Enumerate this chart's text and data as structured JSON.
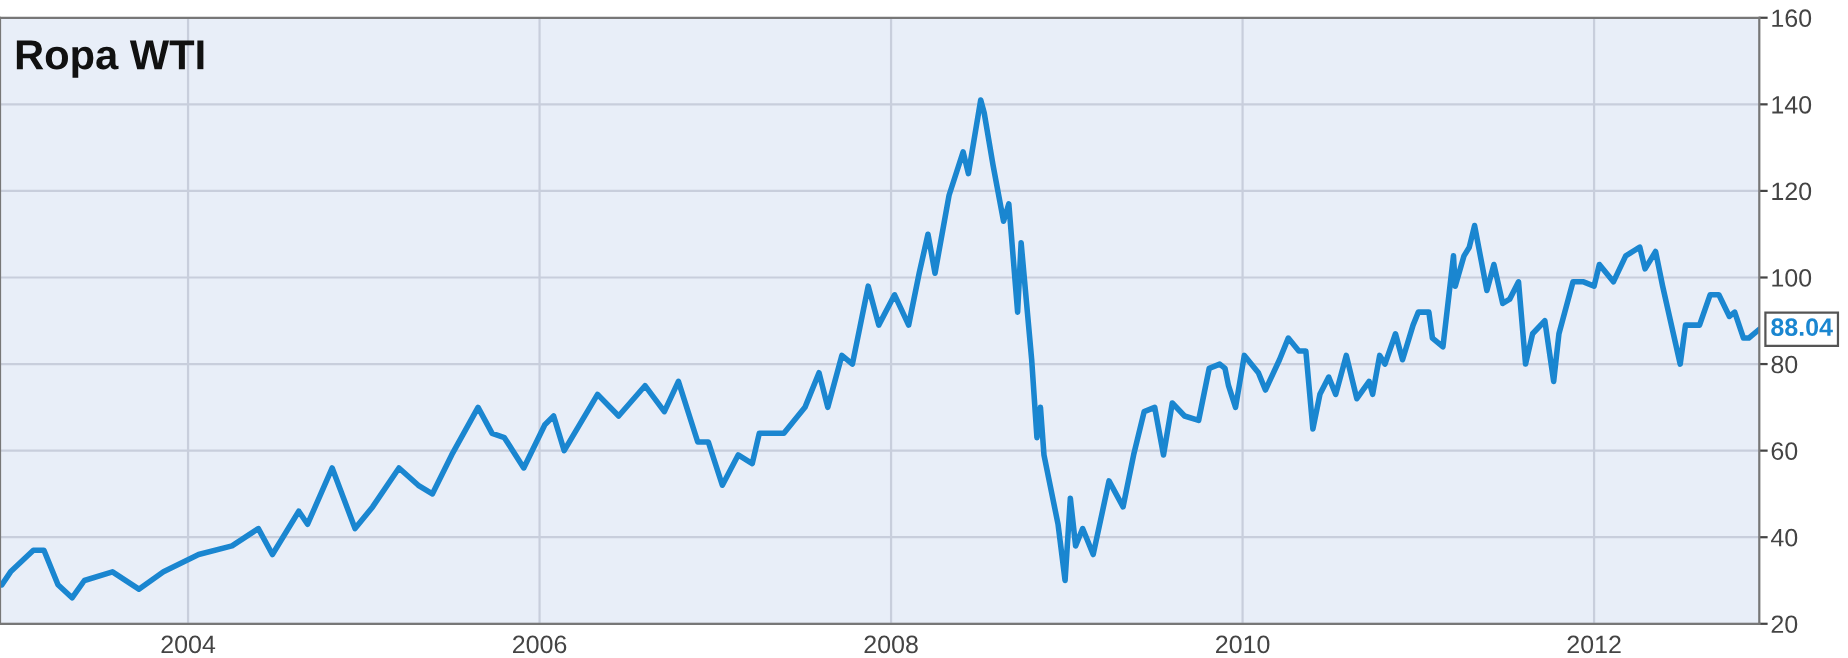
{
  "chart_data": {
    "type": "line",
    "title": "Ropa WTI",
    "x": [
      2002.94,
      2002.99,
      2003.12,
      2003.18,
      2003.26,
      2003.34,
      2003.41,
      2003.57,
      2003.72,
      2003.86,
      2004.06,
      2004.25,
      2004.4,
      2004.48,
      2004.63,
      2004.68,
      2004.82,
      2004.95,
      2005.05,
      2005.2,
      2005.31,
      2005.39,
      2005.5,
      2005.65,
      2005.73,
      2005.8,
      2005.91,
      2006.03,
      2006.08,
      2006.14,
      2006.33,
      2006.45,
      2006.6,
      2006.71,
      2006.79,
      2006.9,
      2006.96,
      2007.04,
      2007.13,
      2007.21,
      2007.25,
      2007.39,
      2007.51,
      2007.59,
      2007.64,
      2007.72,
      2007.78,
      2007.82,
      2007.87,
      2007.93,
      2008.02,
      2008.1,
      2008.16,
      2008.21,
      2008.25,
      2008.33,
      2008.41,
      2008.44,
      2008.51,
      2008.53,
      2008.58,
      2008.64,
      2008.67,
      2008.72,
      2008.74,
      2008.8,
      2008.83,
      2008.85,
      2008.87,
      2008.95,
      2008.99,
      2009.02,
      2009.05,
      2009.09,
      2009.15,
      2009.24,
      2009.32,
      2009.38,
      2009.44,
      2009.5,
      2009.55,
      2009.6,
      2009.67,
      2009.75,
      2009.81,
      2009.87,
      2009.9,
      2009.92,
      2009.96,
      2010.01,
      2010.09,
      2010.13,
      2010.21,
      2010.26,
      2010.32,
      2010.36,
      2010.4,
      2010.44,
      2010.49,
      2010.53,
      2010.59,
      2010.65,
      2010.72,
      2010.74,
      2010.78,
      2010.81,
      2010.87,
      2010.91,
      2010.97,
      2011.0,
      2011.06,
      2011.08,
      2011.14,
      2011.2,
      2011.21,
      2011.26,
      2011.29,
      2011.32,
      2011.39,
      2011.43,
      2011.48,
      2011.52,
      2011.57,
      2011.61,
      2011.65,
      2011.72,
      2011.77,
      2011.8,
      2011.88,
      2011.94,
      2012.0,
      2012.03,
      2012.11,
      2012.18,
      2012.26,
      2012.29,
      2012.35,
      2012.39,
      2012.49,
      2012.52,
      2012.6,
      2012.66,
      2012.71,
      2012.77,
      2012.8,
      2012.85,
      2012.88,
      2012.94
    ],
    "series": [
      {
        "color": "#1a86d0",
        "values": [
          29,
          32,
          37,
          37,
          29,
          26,
          30,
          32,
          28,
          32,
          36,
          38,
          42,
          36,
          46,
          43,
          56,
          42,
          47,
          56,
          52,
          50,
          59,
          70,
          64,
          63,
          56,
          66,
          68,
          60,
          73,
          68,
          75,
          69,
          76,
          62,
          62,
          52,
          59,
          57,
          64,
          64,
          70,
          78,
          70,
          82,
          80,
          88,
          98,
          89,
          96,
          89,
          101,
          110,
          101,
          119,
          129,
          124,
          141,
          138,
          126,
          113,
          117,
          92,
          108,
          81,
          63,
          70,
          59,
          43,
          30,
          49,
          38,
          42,
          36,
          53,
          47,
          59,
          69,
          70,
          59,
          71,
          68,
          67,
          79,
          80,
          79,
          75,
          70,
          82,
          78,
          74,
          81,
          86,
          83,
          83,
          65,
          73,
          77,
          73,
          82,
          72,
          76,
          73,
          82,
          80,
          87,
          81,
          89,
          92,
          92,
          86,
          84,
          105,
          98,
          105,
          107,
          112,
          97,
          103,
          94,
          95,
          99,
          80,
          87,
          90,
          76,
          87,
          99,
          99,
          98,
          103,
          99,
          105,
          107,
          102,
          106,
          98,
          80,
          89,
          89,
          96,
          96,
          91,
          92,
          86,
          86,
          88.04
        ]
      }
    ],
    "xlim": [
      2002.93,
      2012.94
    ],
    "xticks": [
      2004,
      2006,
      2008,
      2010,
      2012
    ],
    "ylim": [
      20,
      160
    ],
    "yticks": [
      20,
      40,
      60,
      80,
      100,
      120,
      140,
      160
    ],
    "grid": true,
    "line_style": "solid",
    "marker": "none",
    "annotations": [
      {
        "text": "88.04",
        "x": 2012.94,
        "y": 88.04
      }
    ]
  }
}
